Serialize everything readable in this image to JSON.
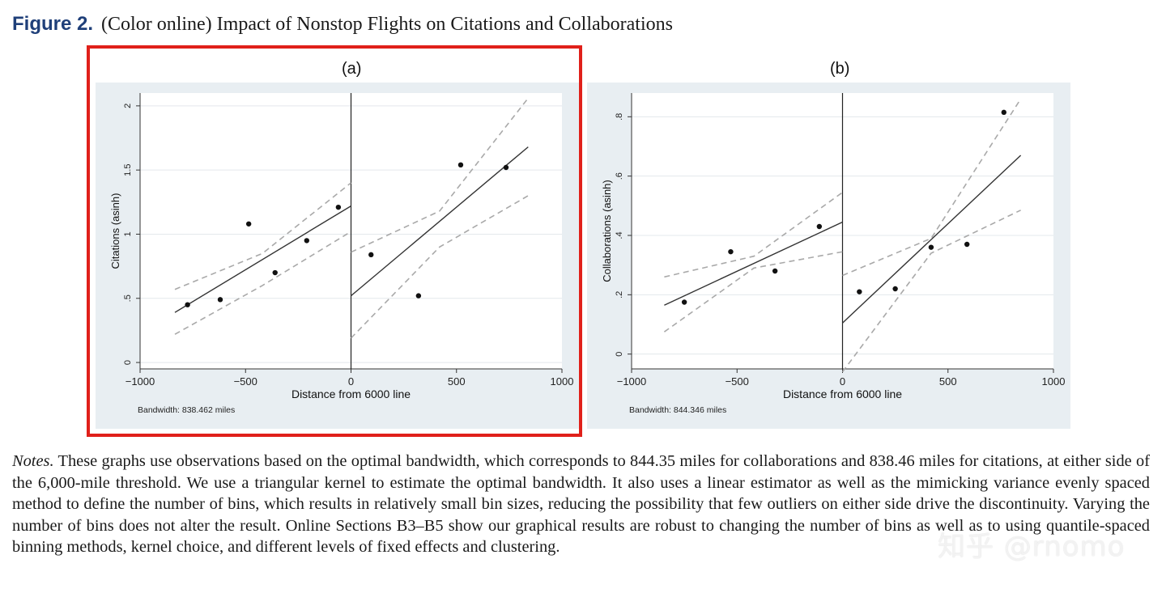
{
  "caption": {
    "label": "Figure 2.",
    "text": "(Color online) Impact of Nonstop Flights on Citations and Collaborations"
  },
  "chart_data": [
    {
      "type": "scatter",
      "panel_title": "(a)",
      "xlabel": "Distance from 6000 line",
      "ylabel": "Citations (asinh)",
      "xlim": [
        -1000,
        1000
      ],
      "ylim": [
        -0.05,
        2.1
      ],
      "xticks": [
        -1000,
        -500,
        0,
        500,
        1000
      ],
      "xtick_labels": [
        "−1000",
        "−500",
        "0",
        "500",
        "1000"
      ],
      "yticks": [
        0,
        0.5,
        1,
        1.5,
        2
      ],
      "ytick_labels": [
        "0",
        ".5",
        "1",
        "1.5",
        "2"
      ],
      "cutoff": 0,
      "bandwidth_note": "Bandwidth: 838.462 miles",
      "highlighted": true,
      "points": [
        {
          "x": -775,
          "y": 0.45
        },
        {
          "x": -620,
          "y": 0.49
        },
        {
          "x": -485,
          "y": 1.08
        },
        {
          "x": -360,
          "y": 0.7
        },
        {
          "x": -210,
          "y": 0.95
        },
        {
          "x": -60,
          "y": 1.21
        },
        {
          "x": 95,
          "y": 0.84
        },
        {
          "x": 320,
          "y": 0.52
        },
        {
          "x": 520,
          "y": 1.54
        },
        {
          "x": 735,
          "y": 1.52
        }
      ],
      "fit_left": {
        "x": [
          -835,
          0
        ],
        "y": [
          0.39,
          1.22
        ]
      },
      "fit_right": {
        "x": [
          0,
          840
        ],
        "y": [
          0.52,
          1.68
        ]
      },
      "ci_left_upper": {
        "x": [
          -835,
          -420,
          0
        ],
        "y": [
          0.57,
          0.85,
          1.4
        ]
      },
      "ci_left_lower": {
        "x": [
          -835,
          -420,
          0
        ],
        "y": [
          0.22,
          0.6,
          1.02
        ]
      },
      "ci_right_upper": {
        "x": [
          0,
          420,
          840
        ],
        "y": [
          0.86,
          1.18,
          2.06
        ]
      },
      "ci_right_lower": {
        "x": [
          0,
          420,
          840
        ],
        "y": [
          0.19,
          0.9,
          1.3
        ]
      }
    },
    {
      "type": "scatter",
      "panel_title": "(b)",
      "xlabel": "Distance from 6000 line",
      "ylabel": "Collaborations (asinh)",
      "xlim": [
        -1000,
        1000
      ],
      "ylim": [
        -0.05,
        0.88
      ],
      "xticks": [
        -1000,
        -500,
        0,
        500,
        1000
      ],
      "xtick_labels": [
        "−1000",
        "−500",
        "0",
        "500",
        "1000"
      ],
      "yticks": [
        0,
        0.2,
        0.4,
        0.6,
        0.8
      ],
      "ytick_labels": [
        "0",
        ".2",
        ".4",
        ".6",
        ".8"
      ],
      "cutoff": 0,
      "bandwidth_note": "Bandwidth: 844.346 miles",
      "highlighted": false,
      "points": [
        {
          "x": -750,
          "y": 0.175
        },
        {
          "x": -530,
          "y": 0.345
        },
        {
          "x": -320,
          "y": 0.28
        },
        {
          "x": -110,
          "y": 0.43
        },
        {
          "x": 80,
          "y": 0.21
        },
        {
          "x": 250,
          "y": 0.22
        },
        {
          "x": 420,
          "y": 0.36
        },
        {
          "x": 590,
          "y": 0.37
        },
        {
          "x": 765,
          "y": 0.815
        }
      ],
      "fit_left": {
        "x": [
          -845,
          0
        ],
        "y": [
          0.165,
          0.445
        ]
      },
      "fit_right": {
        "x": [
          0,
          845
        ],
        "y": [
          0.105,
          0.67
        ]
      },
      "ci_left_upper": {
        "x": [
          -845,
          -420,
          0
        ],
        "y": [
          0.26,
          0.33,
          0.545
        ]
      },
      "ci_left_lower": {
        "x": [
          -845,
          -420,
          0
        ],
        "y": [
          0.075,
          0.29,
          0.345
        ]
      },
      "ci_right_upper": {
        "x": [
          0,
          420,
          845
        ],
        "y": [
          0.265,
          0.39,
          0.86
        ]
      },
      "ci_right_lower": {
        "x": [
          0,
          420,
          845
        ],
        "y": [
          -0.06,
          0.34,
          0.485
        ]
      }
    }
  ],
  "notes": {
    "label": "Notes.",
    "text": "These graphs use observations based on the optimal bandwidth, which corresponds to 844.35 miles for collaborations and 838.46 miles for citations, at either side of the 6,000-mile threshold. We use a triangular kernel to estimate the optimal bandwidth. It also uses a linear estimator as well as the mimicking variance evenly spaced method to define the number of bins, which results in relatively small bin sizes, reducing the possibility that few outliers on either side drive the discontinuity. Varying the number of bins does not alter the result. Online Sections B3–B5 show our graphical results are robust to changing the number of bins as well as to using quantile-spaced binning methods, kernel choice, and different levels of fixed effects and clustering."
  },
  "watermark": "知乎 @rnomo"
}
